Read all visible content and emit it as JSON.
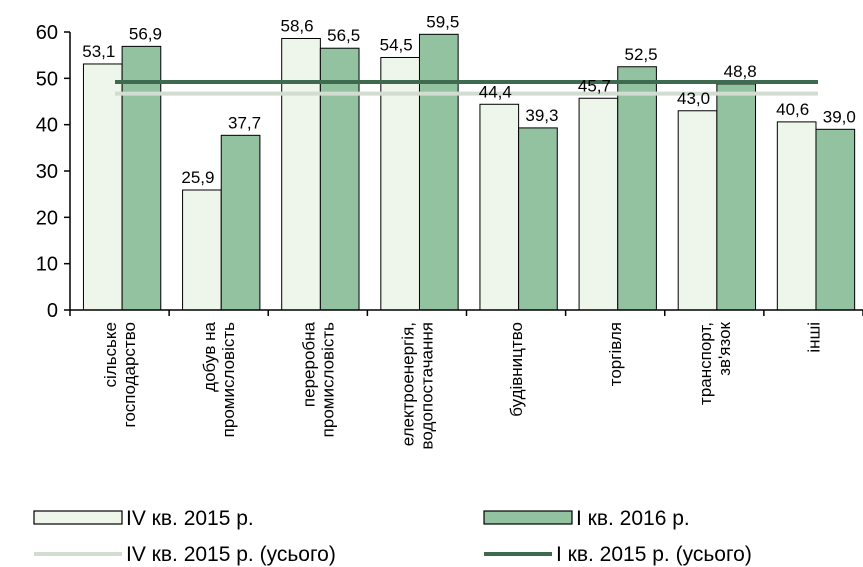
{
  "chart_data": {
    "type": "bar",
    "categories": [
      [
        "сільське",
        "господарство"
      ],
      [
        "добув на",
        "промисловість"
      ],
      [
        "переробна",
        "промисловість"
      ],
      [
        "електроенергія,",
        "водопостачання"
      ],
      [
        "будівництво"
      ],
      [
        "торгівля"
      ],
      [
        "транспорт,",
        "зв'язок"
      ],
      [
        "інші"
      ]
    ],
    "series": [
      {
        "name": "IV кв. 2015 р.",
        "values": [
          53.1,
          25.9,
          58.6,
          54.5,
          44.4,
          45.7,
          43.0,
          40.6
        ],
        "labels": [
          "53,1",
          "25,9",
          "58,6",
          "54,5",
          "44,4",
          "45,7",
          "43,0",
          "40,6"
        ],
        "color": "#eef5ea"
      },
      {
        "name": "I кв. 2016 р.",
        "values": [
          56.9,
          37.7,
          56.5,
          59.5,
          39.3,
          52.5,
          48.8,
          39.0
        ],
        "labels": [
          "56,9",
          "37,7",
          "56,5",
          "59,5",
          "39,3",
          "52,5",
          "48,8",
          "39,0"
        ],
        "color": "#93c2a1"
      }
    ],
    "reference_lines": [
      {
        "name": "IV кв. 2015 р. (усього)",
        "value": 46.7,
        "color": "#d3dcd0"
      },
      {
        "name": "I кв. 2015 р. (усього)",
        "value": 49.2,
        "color": "#3e6b4f"
      }
    ],
    "yticks": [
      "0",
      "10",
      "20",
      "30",
      "40",
      "50",
      "60"
    ],
    "ylim": [
      0,
      60
    ],
    "grid": false,
    "legend_position": "bottom"
  }
}
